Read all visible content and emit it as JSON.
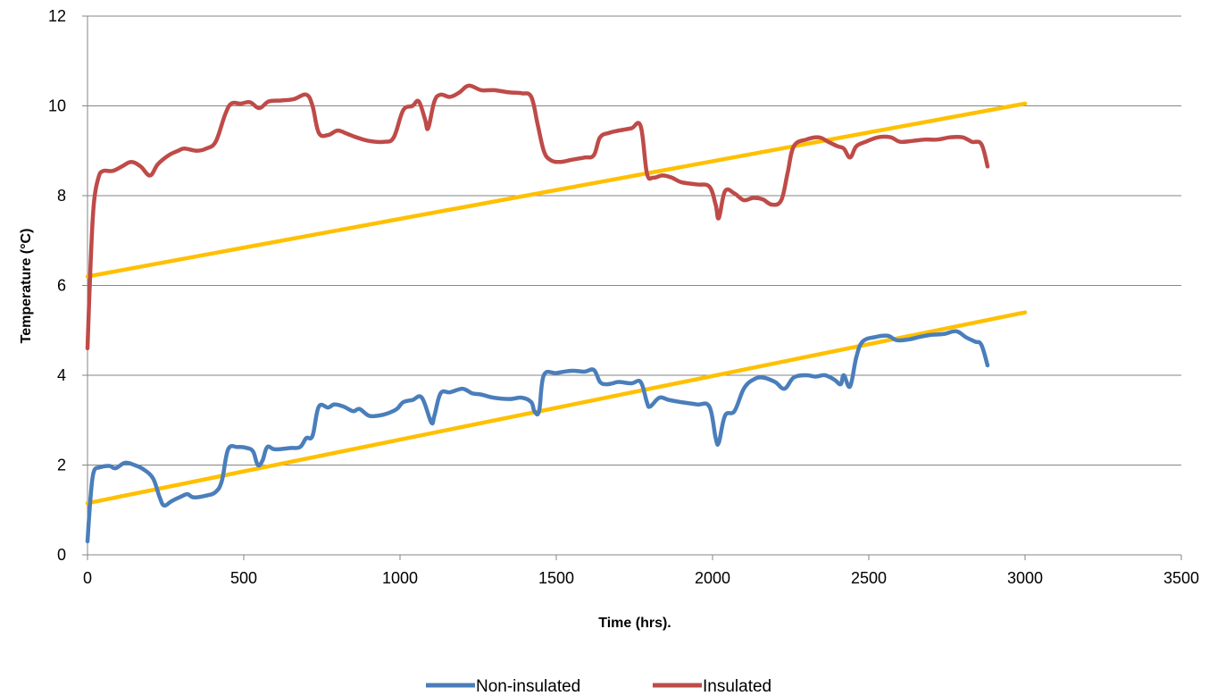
{
  "chart_data": {
    "type": "line",
    "xlabel": "Time (hrs).",
    "ylabel": "Temperature (°C)",
    "xlim": [
      0,
      3500
    ],
    "ylim": [
      0,
      12
    ],
    "xticks": [
      "0",
      "500",
      "1000",
      "1500",
      "2000",
      "2500",
      "3000",
      "3500"
    ],
    "yticks": [
      "0",
      "2",
      "4",
      "6",
      "8",
      "10",
      "12"
    ],
    "grid": "horizontal",
    "legend_position": "bottom",
    "series": [
      {
        "name": "Non-insulated",
        "color": "#4a7ebb",
        "points": [
          [
            0,
            0.3
          ],
          [
            10,
            1.3
          ],
          [
            20,
            1.85
          ],
          [
            40,
            1.95
          ],
          [
            70,
            1.98
          ],
          [
            90,
            1.93
          ],
          [
            120,
            2.05
          ],
          [
            150,
            2.0
          ],
          [
            180,
            1.9
          ],
          [
            210,
            1.7
          ],
          [
            230,
            1.3
          ],
          [
            245,
            1.1
          ],
          [
            270,
            1.2
          ],
          [
            300,
            1.3
          ],
          [
            320,
            1.35
          ],
          [
            340,
            1.28
          ],
          [
            380,
            1.32
          ],
          [
            410,
            1.4
          ],
          [
            430,
            1.65
          ],
          [
            450,
            2.35
          ],
          [
            480,
            2.4
          ],
          [
            510,
            2.38
          ],
          [
            530,
            2.3
          ],
          [
            545,
            2.0
          ],
          [
            560,
            2.1
          ],
          [
            575,
            2.4
          ],
          [
            600,
            2.35
          ],
          [
            650,
            2.38
          ],
          [
            680,
            2.4
          ],
          [
            700,
            2.6
          ],
          [
            720,
            2.65
          ],
          [
            740,
            3.3
          ],
          [
            770,
            3.28
          ],
          [
            790,
            3.35
          ],
          [
            820,
            3.3
          ],
          [
            850,
            3.2
          ],
          [
            870,
            3.25
          ],
          [
            900,
            3.1
          ],
          [
            930,
            3.1
          ],
          [
            960,
            3.15
          ],
          [
            990,
            3.25
          ],
          [
            1010,
            3.4
          ],
          [
            1040,
            3.45
          ],
          [
            1070,
            3.5
          ],
          [
            1100,
            2.95
          ],
          [
            1110,
            3.1
          ],
          [
            1130,
            3.6
          ],
          [
            1160,
            3.62
          ],
          [
            1200,
            3.7
          ],
          [
            1230,
            3.6
          ],
          [
            1260,
            3.57
          ],
          [
            1300,
            3.5
          ],
          [
            1350,
            3.47
          ],
          [
            1390,
            3.5
          ],
          [
            1420,
            3.4
          ],
          [
            1430,
            3.2
          ],
          [
            1445,
            3.2
          ],
          [
            1460,
            4.0
          ],
          [
            1500,
            4.05
          ],
          [
            1550,
            4.1
          ],
          [
            1590,
            4.08
          ],
          [
            1620,
            4.12
          ],
          [
            1640,
            3.85
          ],
          [
            1660,
            3.8
          ],
          [
            1680,
            3.82
          ],
          [
            1700,
            3.85
          ],
          [
            1740,
            3.82
          ],
          [
            1770,
            3.85
          ],
          [
            1790,
            3.4
          ],
          [
            1800,
            3.3
          ],
          [
            1830,
            3.5
          ],
          [
            1860,
            3.45
          ],
          [
            1900,
            3.4
          ],
          [
            1950,
            3.35
          ],
          [
            1990,
            3.3
          ],
          [
            2010,
            2.6
          ],
          [
            2020,
            2.5
          ],
          [
            2040,
            3.1
          ],
          [
            2070,
            3.2
          ],
          [
            2100,
            3.7
          ],
          [
            2130,
            3.9
          ],
          [
            2160,
            3.95
          ],
          [
            2200,
            3.85
          ],
          [
            2230,
            3.7
          ],
          [
            2260,
            3.95
          ],
          [
            2300,
            4.0
          ],
          [
            2330,
            3.97
          ],
          [
            2360,
            4.0
          ],
          [
            2390,
            3.9
          ],
          [
            2410,
            3.8
          ],
          [
            2420,
            4.0
          ],
          [
            2440,
            3.75
          ],
          [
            2460,
            4.4
          ],
          [
            2480,
            4.75
          ],
          [
            2520,
            4.85
          ],
          [
            2560,
            4.88
          ],
          [
            2590,
            4.78
          ],
          [
            2630,
            4.8
          ],
          [
            2660,
            4.85
          ],
          [
            2700,
            4.9
          ],
          [
            2740,
            4.92
          ],
          [
            2780,
            4.98
          ],
          [
            2810,
            4.85
          ],
          [
            2840,
            4.75
          ],
          [
            2860,
            4.68
          ],
          [
            2880,
            4.22
          ]
        ]
      },
      {
        "name": "Insulated",
        "color": "#be4b48",
        "points": [
          [
            0,
            4.6
          ],
          [
            10,
            6.5
          ],
          [
            20,
            7.8
          ],
          [
            35,
            8.4
          ],
          [
            50,
            8.55
          ],
          [
            80,
            8.55
          ],
          [
            110,
            8.65
          ],
          [
            140,
            8.75
          ],
          [
            170,
            8.65
          ],
          [
            200,
            8.45
          ],
          [
            225,
            8.7
          ],
          [
            260,
            8.9
          ],
          [
            290,
            9.0
          ],
          [
            310,
            9.05
          ],
          [
            350,
            9.0
          ],
          [
            380,
            9.05
          ],
          [
            410,
            9.2
          ],
          [
            440,
            9.8
          ],
          [
            460,
            10.05
          ],
          [
            490,
            10.05
          ],
          [
            520,
            10.08
          ],
          [
            550,
            9.95
          ],
          [
            580,
            10.1
          ],
          [
            620,
            10.12
          ],
          [
            660,
            10.15
          ],
          [
            700,
            10.25
          ],
          [
            720,
            10.0
          ],
          [
            740,
            9.4
          ],
          [
            770,
            9.35
          ],
          [
            800,
            9.45
          ],
          [
            830,
            9.38
          ],
          [
            860,
            9.3
          ],
          [
            900,
            9.22
          ],
          [
            950,
            9.2
          ],
          [
            980,
            9.3
          ],
          [
            1010,
            9.9
          ],
          [
            1040,
            10.0
          ],
          [
            1060,
            10.1
          ],
          [
            1080,
            9.7
          ],
          [
            1090,
            9.5
          ],
          [
            1110,
            10.1
          ],
          [
            1130,
            10.25
          ],
          [
            1160,
            10.2
          ],
          [
            1190,
            10.3
          ],
          [
            1220,
            10.45
          ],
          [
            1260,
            10.35
          ],
          [
            1300,
            10.35
          ],
          [
            1350,
            10.3
          ],
          [
            1390,
            10.28
          ],
          [
            1420,
            10.2
          ],
          [
            1440,
            9.6
          ],
          [
            1460,
            9.0
          ],
          [
            1480,
            8.8
          ],
          [
            1510,
            8.75
          ],
          [
            1550,
            8.8
          ],
          [
            1590,
            8.85
          ],
          [
            1620,
            8.9
          ],
          [
            1640,
            9.3
          ],
          [
            1670,
            9.4
          ],
          [
            1700,
            9.45
          ],
          [
            1740,
            9.5
          ],
          [
            1770,
            9.55
          ],
          [
            1790,
            8.5
          ],
          [
            1810,
            8.4
          ],
          [
            1840,
            8.45
          ],
          [
            1870,
            8.4
          ],
          [
            1900,
            8.3
          ],
          [
            1950,
            8.25
          ],
          [
            1990,
            8.2
          ],
          [
            2010,
            7.8
          ],
          [
            2020,
            7.5
          ],
          [
            2040,
            8.1
          ],
          [
            2070,
            8.05
          ],
          [
            2100,
            7.9
          ],
          [
            2130,
            7.95
          ],
          [
            2160,
            7.92
          ],
          [
            2190,
            7.8
          ],
          [
            2220,
            7.9
          ],
          [
            2240,
            8.5
          ],
          [
            2260,
            9.1
          ],
          [
            2300,
            9.25
          ],
          [
            2340,
            9.3
          ],
          [
            2370,
            9.2
          ],
          [
            2400,
            9.1
          ],
          [
            2420,
            9.05
          ],
          [
            2440,
            8.85
          ],
          [
            2460,
            9.1
          ],
          [
            2490,
            9.2
          ],
          [
            2530,
            9.3
          ],
          [
            2570,
            9.3
          ],
          [
            2600,
            9.2
          ],
          [
            2640,
            9.22
          ],
          [
            2680,
            9.25
          ],
          [
            2720,
            9.25
          ],
          [
            2760,
            9.3
          ],
          [
            2800,
            9.3
          ],
          [
            2830,
            9.2
          ],
          [
            2860,
            9.15
          ],
          [
            2880,
            8.65
          ]
        ]
      }
    ],
    "trendlines": [
      {
        "color": "#ffc000",
        "x": [
          0,
          3000
        ],
        "y": [
          1.15,
          5.4
        ]
      },
      {
        "color": "#ffc000",
        "x": [
          0,
          3000
        ],
        "y": [
          6.2,
          10.05
        ]
      }
    ]
  }
}
